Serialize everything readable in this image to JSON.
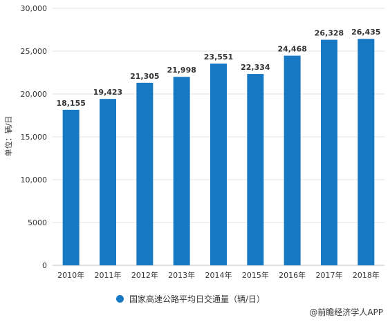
{
  "chart_data": {
    "type": "bar",
    "categories": [
      "2010年",
      "2011年",
      "2012年",
      "2013年",
      "2014年",
      "2015年",
      "2016年",
      "2017年",
      "2018年"
    ],
    "values": [
      18155,
      19423,
      21305,
      21998,
      23551,
      22334,
      24468,
      26328,
      26435
    ],
    "value_labels": [
      "18,155",
      "19,423",
      "21,305",
      "21,998",
      "23,551",
      "22,334",
      "24,468",
      "26,328",
      "26,435"
    ],
    "ylim": [
      0,
      30000
    ],
    "y_ticks": [
      0,
      5000,
      10000,
      15000,
      20000,
      25000,
      30000
    ],
    "y_tick_labels": [
      "0",
      "5000",
      "10,000",
      "15,000",
      "20,000",
      "25,000",
      "30,000"
    ],
    "ylabel": "单位：辆/日",
    "series": [
      {
        "name": "国家高速公路平均日交通量（辆/日）"
      }
    ],
    "grid": true,
    "legend_position": "bottom",
    "color": "#1779c4"
  },
  "credit": "@前瞻经济学人APP"
}
